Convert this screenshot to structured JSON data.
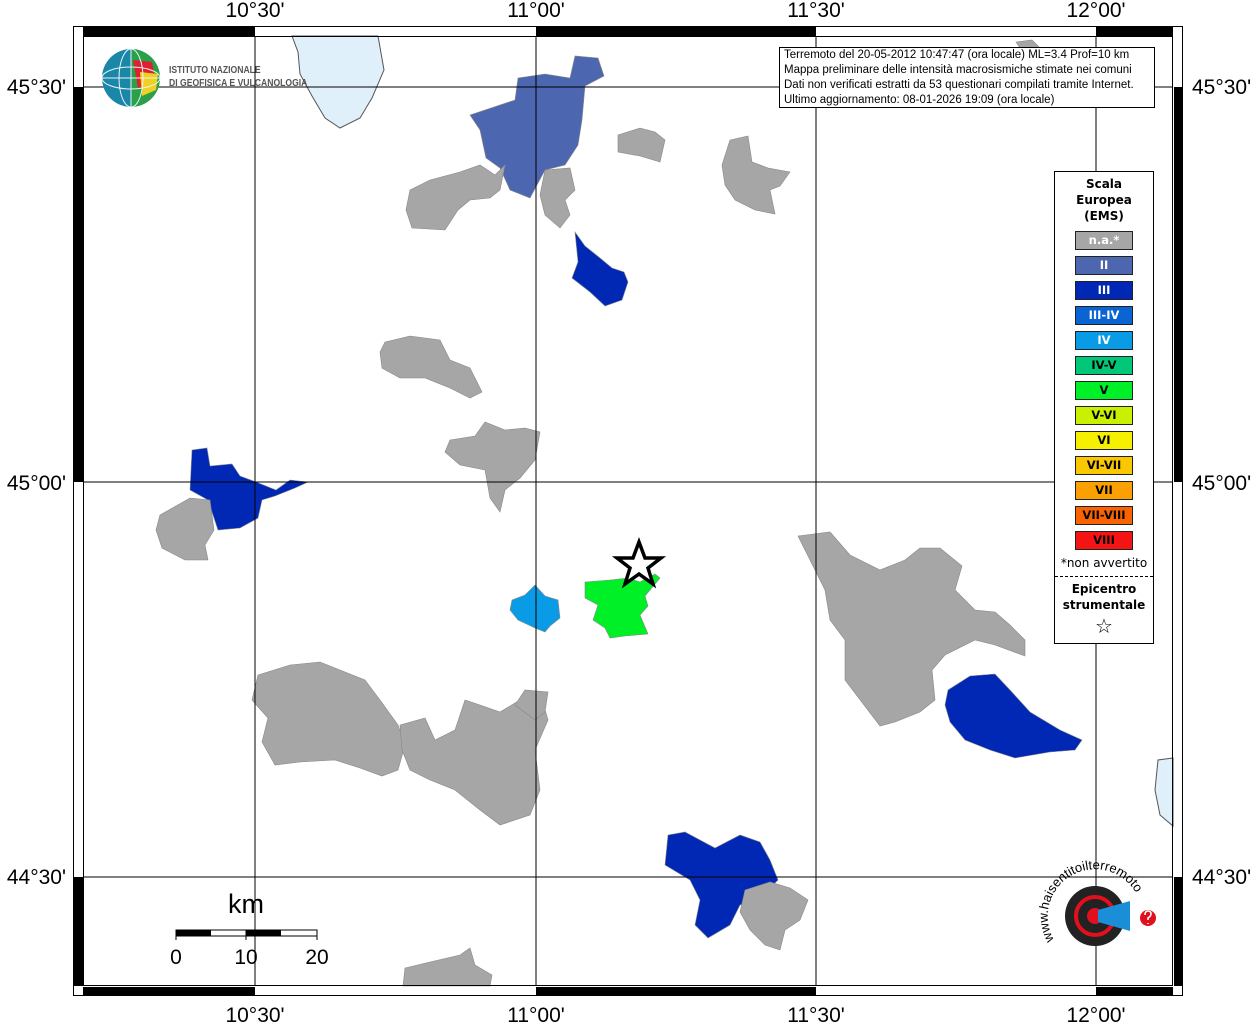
{
  "map": {
    "axes": {
      "lon_labels": [
        "10°30'",
        "11°00'",
        "11°30'",
        "12°00'"
      ],
      "lat_labels": [
        "45°30'",
        "45°00'",
        "44°30'"
      ]
    },
    "info_box": {
      "line1": "Terremoto del 20-05-2012 10:47:47 (ora locale) ML=3.4 Prof=10 km",
      "line2": "Mappa preliminare delle intensità macrosismiche stimate nei comuni",
      "line3": "Dati non verificati estratti da 53 questionari compilati tramite Internet.",
      "line4": "Ultimo aggiornamento: 08-01-2026 19:09 (ora locale)"
    },
    "logo": {
      "ingv_line1": "ISTITUTO NAZIONALE",
      "ingv_line2": "DI GEOFISICA E VULCANOLOGIA",
      "hsit_text": "www.haisentitoilterremoto.it"
    },
    "scale_bar": {
      "unit": "km",
      "ticks": [
        "0",
        "10",
        "20"
      ]
    },
    "colors": {
      "water": "#dff0fb",
      "grid": "#000000",
      "border": "#555555"
    },
    "areas": [
      {
        "intensity": "II"
      },
      {
        "intensity": "III"
      },
      {
        "intensity": "III"
      },
      {
        "intensity": "III"
      },
      {
        "intensity": "III"
      },
      {
        "intensity": "IV"
      },
      {
        "intensity": "V"
      },
      {
        "intensity": "n.a.*"
      },
      {
        "intensity": "n.a.*"
      },
      {
        "intensity": "n.a.*"
      },
      {
        "intensity": "n.a.*"
      },
      {
        "intensity": "n.a.*"
      },
      {
        "intensity": "n.a.*"
      },
      {
        "intensity": "n.a.*"
      },
      {
        "intensity": "n.a.*"
      },
      {
        "intensity": "n.a.*"
      },
      {
        "intensity": "n.a.*"
      },
      {
        "intensity": "n.a.*"
      },
      {
        "intensity": "n.a.*"
      },
      {
        "intensity": "n.a.*"
      },
      {
        "intensity": "n.a.*"
      }
    ]
  },
  "legend": {
    "title_line1": "Scala",
    "title_line2": "Europea",
    "title_line3": "(EMS)",
    "items": [
      {
        "label": "n.a.*",
        "color": "#a6a6a6",
        "text_color": "#ffffff"
      },
      {
        "label": "II",
        "color": "#4d66b0",
        "text_color": "#ffffff"
      },
      {
        "label": "III",
        "color": "#0028b4",
        "text_color": "#ffffff"
      },
      {
        "label": "III-IV",
        "color": "#0a64d2",
        "text_color": "#ffffff"
      },
      {
        "label": "IV",
        "color": "#0a9be6",
        "text_color": "#ffffff"
      },
      {
        "label": "IV-V",
        "color": "#00c878",
        "text_color": "#000000"
      },
      {
        "label": "V",
        "color": "#00f028",
        "text_color": "#000000"
      },
      {
        "label": "V-VI",
        "color": "#c8f000",
        "text_color": "#000000"
      },
      {
        "label": "VI",
        "color": "#f5f000",
        "text_color": "#000000"
      },
      {
        "label": "VI-VII",
        "color": "#fac800",
        "text_color": "#000000"
      },
      {
        "label": "VII",
        "color": "#faa000",
        "text_color": "#000000"
      },
      {
        "label": "VII-VIII",
        "color": "#fa6400",
        "text_color": "#000000"
      },
      {
        "label": "VIII",
        "color": "#f51414",
        "text_color": "#000000"
      }
    ],
    "note": "*non avvertito",
    "epicenter_line1": "Epicentro",
    "epicenter_line2": "strumentale",
    "epicenter_symbol": "☆"
  }
}
